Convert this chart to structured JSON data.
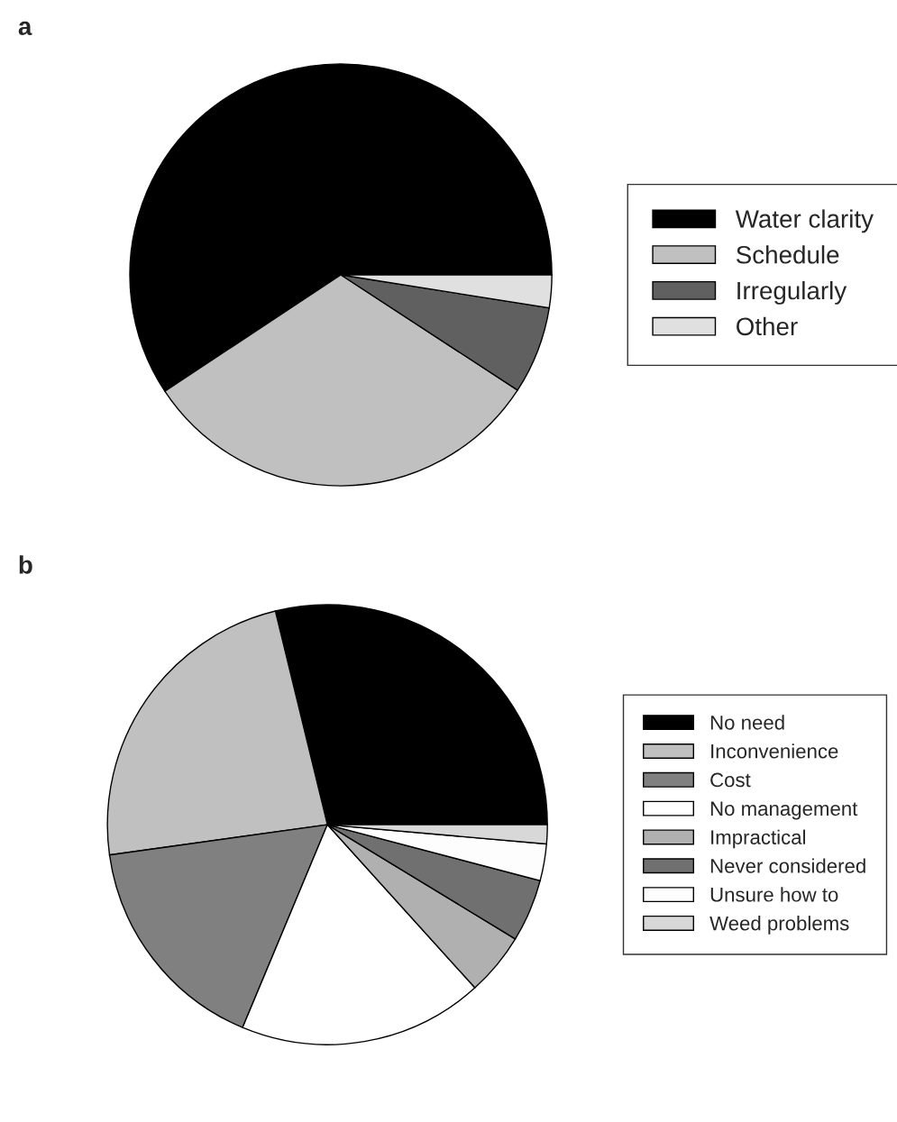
{
  "chart_data": [
    {
      "type": "pie",
      "title": "a",
      "categories": [
        "Water clarity",
        "Schedule",
        "Irregularly",
        "Other"
      ],
      "values": [
        59.3,
        31.5,
        6.7,
        2.5
      ],
      "colors": [
        "#000000",
        "#c0c0c0",
        "#606060",
        "#e0e0e0"
      ],
      "legend": "right"
    },
    {
      "type": "pie",
      "title": "b",
      "categories": [
        "No need",
        "Inconvenience",
        "Cost",
        "No management",
        "Impractical",
        "Never considered",
        "Unsure how to",
        "Weed problems"
      ],
      "values": [
        28.8,
        23.4,
        16.5,
        18.0,
        4.6,
        4.6,
        2.7,
        1.4
      ],
      "colors": [
        "#000000",
        "#c0c0c0",
        "#808080",
        "#ffffff",
        "#b0b0b0",
        "#707070",
        "#fdfdfd",
        "#d8d8d8"
      ],
      "legend": "right"
    }
  ]
}
